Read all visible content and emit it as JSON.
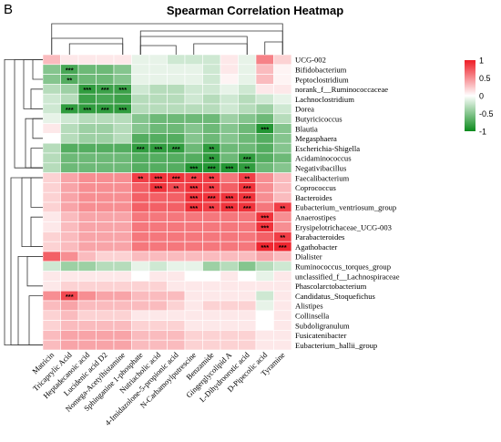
{
  "panel_label": "B",
  "chart_data": {
    "type": "heatmap",
    "title": "Spearman Correlation Heatmap",
    "rows": [
      "UCG-002",
      "Bifidobacterium",
      "Peptoclostridium",
      "norank_f__Ruminococcaceae",
      "Lachnoclostridium",
      "Dorea",
      "Butyricicoccus",
      "Blautia",
      "Megasphaera",
      "Escherichia-Shigella",
      "Acidaminococcus",
      "Negativibacillus",
      "Faecalibacterium",
      "Coprococcus",
      "Bacteroides",
      "Eubacterium_ventriosum_group",
      "Anaerostipes",
      "Erysipelotrichaceae_UCG-003",
      "Parabacteroides",
      "Agathobacter",
      "Dialister",
      "Ruminococcus_torques_group",
      "unclassified_f__Lachnospiraceae",
      "Phascolarctobacterium",
      "Candidatus_Stoquefichus",
      "Alistipes",
      "Collinsella",
      "Subdoligranulum",
      "Fusicatenibacter",
      "Eubacterium_hallii_group"
    ],
    "columns": [
      "Matricin",
      "Tricaprylic Acid",
      "Heptadecanoic acid",
      "Lucidenic acid D2",
      "Nomega-Acetylhistamine",
      "Sphinganine 1-phosphate",
      "Nutriacholic acid",
      "4-Imidazolone-5-propionic acid",
      "N-Carbamoylputrescine",
      "Benzamide",
      "Gingerglycolipid A",
      "L-Dihydroorotic acid",
      "D-Pipecolic acid",
      "Tyramine"
    ],
    "values": [
      [
        0.3,
        0.1,
        0.1,
        0.1,
        0.1,
        -0.1,
        -0.1,
        -0.2,
        -0.2,
        -0.2,
        0.1,
        -0.1,
        0.55,
        0.2
      ],
      [
        -0.5,
        -0.75,
        -0.6,
        -0.6,
        -0.5,
        -0.1,
        -0.1,
        -0.1,
        -0.1,
        -0.2,
        0.1,
        -0.1,
        0.3,
        0.05
      ],
      [
        -0.5,
        -0.7,
        -0.6,
        -0.6,
        -0.5,
        -0.1,
        -0.1,
        -0.1,
        -0.1,
        -0.2,
        0.05,
        -0.1,
        0.3,
        0.05
      ],
      [
        -0.3,
        -0.4,
        -0.85,
        -0.8,
        -0.8,
        -0.2,
        -0.3,
        -0.3,
        -0.2,
        -0.2,
        -0.1,
        -0.2,
        0.1,
        0.1
      ],
      [
        -0.2,
        -0.3,
        -0.8,
        -0.75,
        -0.8,
        -0.3,
        -0.3,
        -0.3,
        -0.2,
        -0.3,
        -0.2,
        -0.3,
        -0.2,
        -0.1
      ],
      [
        -0.2,
        -0.85,
        -0.85,
        -0.85,
        -0.85,
        -0.3,
        -0.3,
        -0.3,
        -0.3,
        -0.3,
        -0.2,
        -0.3,
        -0.4,
        -0.2
      ],
      [
        -0.1,
        -0.2,
        -0.3,
        -0.3,
        -0.3,
        -0.5,
        -0.6,
        -0.6,
        -0.6,
        -0.6,
        -0.4,
        -0.5,
        -0.6,
        -0.3
      ],
      [
        0.1,
        -0.3,
        -0.4,
        -0.4,
        -0.3,
        -0.5,
        -0.6,
        -0.6,
        -0.5,
        -0.6,
        -0.5,
        -0.6,
        -0.9,
        -0.5
      ],
      [
        0.0,
        -0.3,
        -0.4,
        -0.4,
        -0.3,
        -0.7,
        -0.7,
        -0.7,
        -0.5,
        -0.6,
        -0.5,
        -0.6,
        -0.7,
        -0.5
      ],
      [
        -0.3,
        -0.7,
        -0.7,
        -0.7,
        -0.7,
        -0.85,
        -0.85,
        -0.85,
        -0.6,
        -0.85,
        -0.6,
        -0.6,
        -0.7,
        -0.5
      ],
      [
        -0.3,
        -0.6,
        -0.6,
        -0.6,
        -0.6,
        -0.7,
        -0.7,
        -0.7,
        -0.7,
        -0.85,
        -0.6,
        -0.85,
        -0.7,
        -0.6
      ],
      [
        -0.3,
        -0.6,
        -0.6,
        -0.6,
        -0.6,
        -0.7,
        -0.7,
        -0.7,
        -0.9,
        -0.9,
        -0.9,
        -0.85,
        -0.6,
        -0.5
      ],
      [
        0.2,
        0.4,
        0.5,
        0.5,
        0.5,
        0.85,
        0.9,
        0.9,
        0.85,
        0.85,
        0.6,
        0.85,
        0.5,
        0.3
      ],
      [
        0.2,
        0.4,
        0.5,
        0.5,
        0.5,
        0.7,
        0.9,
        0.8,
        0.9,
        0.85,
        0.7,
        0.9,
        0.5,
        0.3
      ],
      [
        0.2,
        0.4,
        0.5,
        0.5,
        0.5,
        0.7,
        0.7,
        0.7,
        0.9,
        0.9,
        0.9,
        0.9,
        0.5,
        0.3
      ],
      [
        0.2,
        0.4,
        0.5,
        0.5,
        0.5,
        0.7,
        0.7,
        0.7,
        0.9,
        0.85,
        0.9,
        0.9,
        0.6,
        0.85
      ],
      [
        0.1,
        0.3,
        0.4,
        0.4,
        0.4,
        0.6,
        0.6,
        0.6,
        0.6,
        0.6,
        0.6,
        0.6,
        0.9,
        0.5
      ],
      [
        0.1,
        0.3,
        0.4,
        0.4,
        0.4,
        0.6,
        0.6,
        0.6,
        0.6,
        0.6,
        0.6,
        0.6,
        0.9,
        0.5
      ],
      [
        0.2,
        0.3,
        0.4,
        0.4,
        0.4,
        0.6,
        0.6,
        0.6,
        0.6,
        0.6,
        0.6,
        0.6,
        0.7,
        0.85
      ],
      [
        0.2,
        0.3,
        0.4,
        0.4,
        0.4,
        0.6,
        0.6,
        0.6,
        0.6,
        0.6,
        0.6,
        0.6,
        0.95,
        0.95
      ],
      [
        0.7,
        0.5,
        0.3,
        0.2,
        0.2,
        0.3,
        0.3,
        0.3,
        0.3,
        0.3,
        0.3,
        0.3,
        0.4,
        0.3
      ],
      [
        -0.2,
        -0.4,
        -0.4,
        -0.3,
        -0.3,
        -0.1,
        -0.2,
        -0.1,
        -0.1,
        -0.4,
        -0.3,
        -0.5,
        -0.3,
        -0.2
      ],
      [
        0.1,
        0.1,
        0.1,
        0.1,
        0.1,
        0.0,
        0.1,
        0.1,
        0.0,
        0.0,
        0.1,
        0.0,
        -0.1,
        0.1
      ],
      [
        0.1,
        0.2,
        0.2,
        0.2,
        0.2,
        0.2,
        0.2,
        0.1,
        0.1,
        0.1,
        0.1,
        0.1,
        0.1,
        0.1
      ],
      [
        0.5,
        0.8,
        0.5,
        0.4,
        0.4,
        0.3,
        0.3,
        0.3,
        0.1,
        0.1,
        0.1,
        0.1,
        -0.2,
        0.1
      ],
      [
        0.3,
        0.4,
        0.3,
        0.3,
        0.3,
        0.3,
        0.3,
        0.2,
        0.1,
        0.2,
        0.2,
        0.2,
        -0.1,
        0.1
      ],
      [
        0.2,
        0.3,
        0.2,
        0.2,
        0.2,
        0.1,
        0.1,
        0.1,
        0.1,
        0.1,
        0.1,
        0.1,
        0.0,
        0.1
      ],
      [
        0.2,
        0.3,
        0.3,
        0.3,
        0.3,
        0.2,
        0.2,
        0.2,
        0.1,
        0.1,
        0.1,
        0.1,
        0.0,
        0.1
      ],
      [
        0.3,
        0.4,
        0.4,
        0.4,
        0.4,
        0.3,
        0.3,
        0.3,
        0.2,
        0.2,
        0.2,
        0.2,
        0.1,
        0.1
      ],
      [
        0.3,
        0.4,
        0.4,
        0.4,
        0.4,
        0.3,
        0.3,
        0.3,
        0.2,
        0.2,
        0.2,
        0.2,
        0.1,
        0.1
      ]
    ],
    "significance": [
      [
        "",
        "",
        "",
        "",
        "",
        "",
        "",
        "",
        "",
        "",
        "",
        "",
        "",
        ""
      ],
      [
        "",
        "***",
        "",
        "",
        "",
        "",
        "",
        "",
        "",
        "",
        "",
        "",
        "",
        ""
      ],
      [
        "",
        "**",
        "",
        "",
        "",
        "",
        "",
        "",
        "",
        "",
        "",
        "",
        "",
        ""
      ],
      [
        "",
        "",
        "***",
        "***",
        "***",
        "",
        "",
        "",
        "",
        "",
        "",
        "",
        "",
        ""
      ],
      [
        "",
        "",
        "",
        "",
        "",
        "",
        "",
        "",
        "",
        "",
        "",
        "",
        "",
        ""
      ],
      [
        "",
        "***",
        "***",
        "***",
        "***",
        "",
        "",
        "",
        "",
        "",
        "",
        "",
        "",
        ""
      ],
      [
        "",
        "",
        "",
        "",
        "",
        "",
        "",
        "",
        "",
        "",
        "",
        "",
        "",
        ""
      ],
      [
        "",
        "",
        "",
        "",
        "",
        "",
        "",
        "",
        "",
        "",
        "",
        "",
        "***",
        ""
      ],
      [
        "",
        "",
        "",
        "",
        "",
        "",
        "",
        "",
        "",
        "",
        "",
        "",
        "",
        ""
      ],
      [
        "",
        "",
        "",
        "",
        "",
        "***",
        "***",
        "***",
        "",
        "**",
        "",
        "",
        "",
        ""
      ],
      [
        "",
        "",
        "",
        "",
        "",
        "",
        "",
        "",
        "",
        "**",
        "",
        "***",
        "",
        ""
      ],
      [
        "",
        "",
        "",
        "",
        "",
        "",
        "",
        "",
        "***",
        "***",
        "***",
        "**",
        "",
        ""
      ],
      [
        "",
        "",
        "",
        "",
        "",
        "**",
        "***",
        "***",
        "**",
        "**",
        "",
        "**",
        "",
        ""
      ],
      [
        "",
        "",
        "",
        "",
        "",
        "",
        "***",
        "**",
        "***",
        "**",
        "",
        "***",
        "",
        ""
      ],
      [
        "",
        "",
        "",
        "",
        "",
        "",
        "",
        "",
        "***",
        "***",
        "***",
        "***",
        "",
        ""
      ],
      [
        "",
        "",
        "",
        "",
        "",
        "",
        "",
        "",
        "***",
        "**",
        "***",
        "***",
        "",
        "**"
      ],
      [
        "",
        "",
        "",
        "",
        "",
        "",
        "",
        "",
        "",
        "",
        "",
        "",
        "***",
        ""
      ],
      [
        "",
        "",
        "",
        "",
        "",
        "",
        "",
        "",
        "",
        "",
        "",
        "",
        "***",
        ""
      ],
      [
        "",
        "",
        "",
        "",
        "",
        "",
        "",
        "",
        "",
        "",
        "",
        "",
        "",
        "**"
      ],
      [
        "",
        "",
        "",
        "",
        "",
        "",
        "",
        "",
        "",
        "",
        "",
        "",
        "***",
        "***"
      ],
      [
        "",
        "",
        "",
        "",
        "",
        "",
        "",
        "",
        "",
        "",
        "",
        "",
        "",
        ""
      ],
      [
        "",
        "",
        "",
        "",
        "",
        "",
        "",
        "",
        "",
        "",
        "",
        "",
        "",
        ""
      ],
      [
        "",
        "",
        "",
        "",
        "",
        "",
        "",
        "",
        "",
        "",
        "",
        "",
        "",
        ""
      ],
      [
        "",
        "",
        "",
        "",
        "",
        "",
        "",
        "",
        "",
        "",
        "",
        "",
        "",
        ""
      ],
      [
        "",
        "***",
        "",
        "",
        "",
        "",
        "",
        "",
        "",
        "",
        "",
        "",
        "",
        ""
      ],
      [
        "",
        "",
        "",
        "",
        "",
        "",
        "",
        "",
        "",
        "",
        "",
        "",
        "",
        ""
      ],
      [
        "",
        "",
        "",
        "",
        "",
        "",
        "",
        "",
        "",
        "",
        "",
        "",
        "",
        ""
      ],
      [
        "",
        "",
        "",
        "",
        "",
        "",
        "",
        "",
        "",
        "",
        "",
        "",
        "",
        ""
      ],
      [
        "",
        "",
        "",
        "",
        "",
        "",
        "",
        "",
        "",
        "",
        "",
        "",
        "",
        ""
      ],
      [
        "",
        "",
        "",
        "",
        "",
        "",
        "",
        "",
        "",
        "",
        "",
        "",
        "",
        ""
      ]
    ],
    "colorbar": {
      "min": -1,
      "max": 1,
      "ticks": [
        "1",
        "0.5",
        "0",
        "-0.5",
        "-1"
      ]
    },
    "colors": {
      "high": "#ee1c25",
      "mid": "#ffffff",
      "low": "#0b8a1c"
    },
    "dendrograms": {
      "row": true,
      "column": true
    }
  }
}
